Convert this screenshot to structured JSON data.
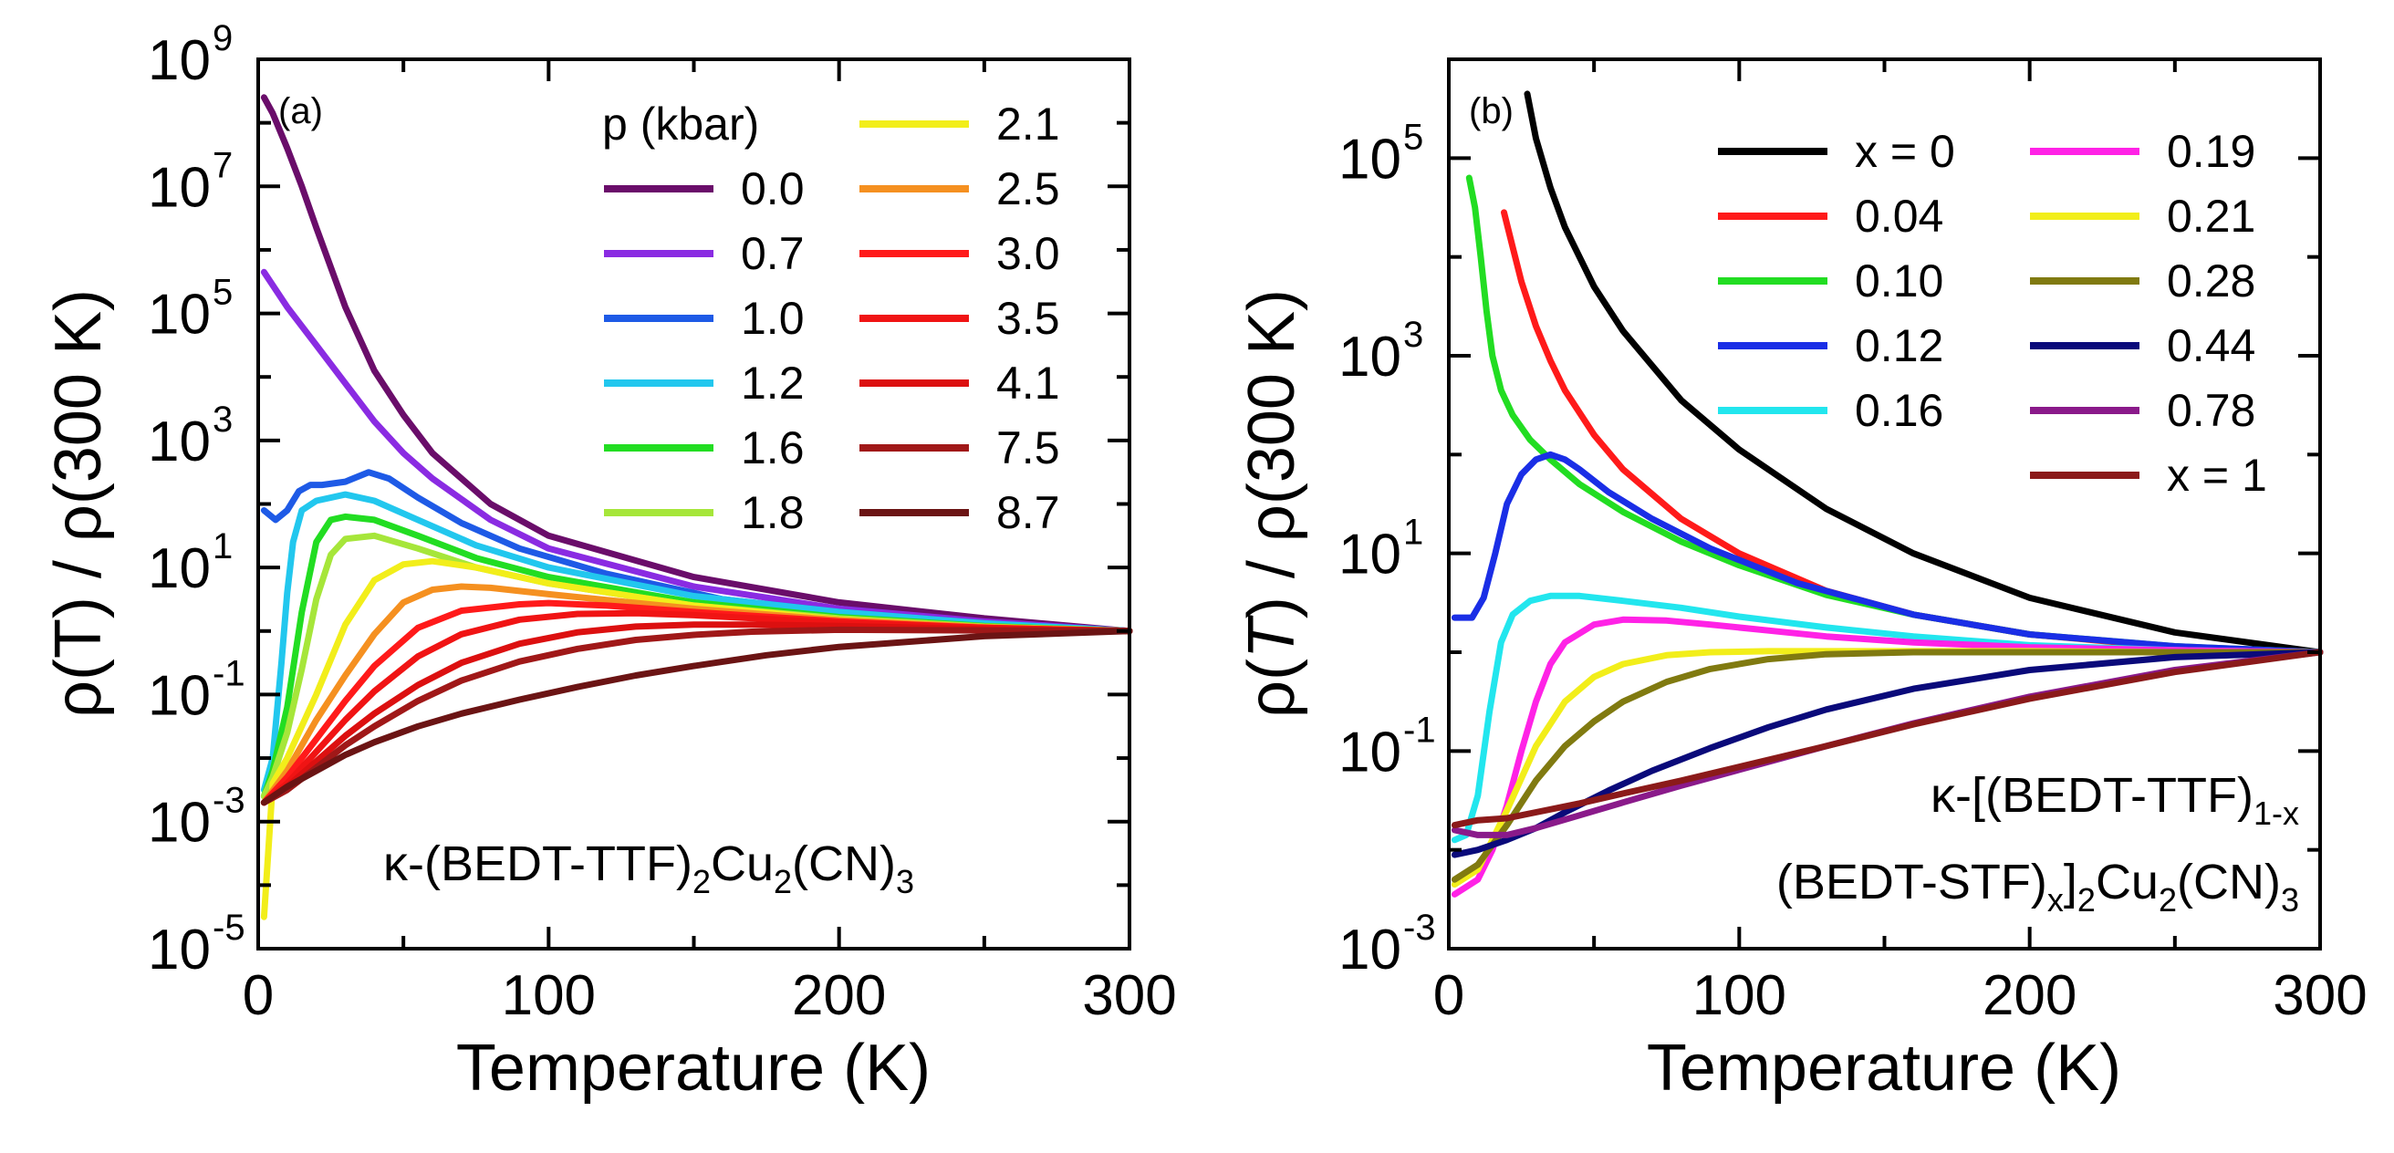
{
  "chart_data": [
    {
      "type": "line",
      "panel_label": "(a)",
      "xlabel": "Temperature (K)",
      "ylabel_parts": [
        "ρ(T) / ρ(300 K)"
      ],
      "yscale": "log",
      "xlim": [
        0,
        300
      ],
      "ylim_exp": [
        -5,
        9
      ],
      "x_ticks": [
        0,
        100,
        200,
        300
      ],
      "x_tick_labels": [
        "0",
        "100",
        "200",
        "300"
      ],
      "y_tick_exps": [
        -5,
        -3,
        -1,
        1,
        3,
        5,
        7,
        9
      ],
      "y_tick_base": "10",
      "y_tick_exp_labels": [
        "-5",
        "-3",
        "-1",
        "1",
        "3",
        "5",
        "7",
        "9"
      ],
      "legend_title": "p (kbar)",
      "formula": {
        "a": "κ-(BEDT-TTF)",
        "b": "2",
        "c": "Cu",
        "d": "2",
        "e": "(CN)",
        "f": "3"
      },
      "series": [
        {
          "name": "0.0",
          "color": "#6a0d6a",
          "x": [
            2,
            5,
            10,
            15,
            20,
            30,
            40,
            50,
            60,
            80,
            100,
            150,
            200,
            250,
            300
          ],
          "log10y": [
            8.4,
            8.15,
            7.6,
            7.0,
            6.35,
            5.1,
            4.1,
            3.4,
            2.8,
            2.0,
            1.5,
            0.85,
            0.45,
            0.2,
            0
          ]
        },
        {
          "name": "0.7",
          "color": "#8a2be2",
          "x": [
            2,
            10,
            20,
            30,
            40,
            50,
            60,
            80,
            100,
            150,
            200,
            250,
            300
          ],
          "log10y": [
            5.65,
            5.1,
            4.5,
            3.9,
            3.3,
            2.8,
            2.4,
            1.75,
            1.3,
            0.7,
            0.35,
            0.15,
            0
          ]
        },
        {
          "name": "1.0",
          "color": "#1e5ae6",
          "x": [
            2,
            6,
            10,
            14,
            18,
            22,
            30,
            38,
            45,
            55,
            70,
            90,
            120,
            160,
            200,
            250,
            300
          ],
          "log10y": [
            1.9,
            1.75,
            1.9,
            2.2,
            2.3,
            2.3,
            2.35,
            2.5,
            2.4,
            2.1,
            1.7,
            1.3,
            0.9,
            0.5,
            0.3,
            0.12,
            0
          ]
        },
        {
          "name": "1.2",
          "color": "#22c7ee",
          "x": [
            2,
            5,
            8,
            10,
            12,
            15,
            20,
            30,
            40,
            55,
            75,
            100,
            150,
            200,
            250,
            300
          ],
          "log10y": [
            -2.5,
            -2.0,
            -0.5,
            0.6,
            1.4,
            1.9,
            2.05,
            2.15,
            2.05,
            1.75,
            1.35,
            1.0,
            0.55,
            0.3,
            0.12,
            0
          ]
        },
        {
          "name": "1.6",
          "color": "#22dd22",
          "x": [
            2,
            5,
            10,
            15,
            20,
            25,
            30,
            40,
            55,
            75,
            100,
            150,
            200,
            250,
            300
          ],
          "log10y": [
            -2.6,
            -2.2,
            -1.2,
            0.3,
            1.4,
            1.75,
            1.8,
            1.75,
            1.5,
            1.15,
            0.85,
            0.45,
            0.22,
            0.08,
            0
          ]
        },
        {
          "name": "1.8",
          "color": "#a6e63a",
          "x": [
            2,
            5,
            10,
            15,
            20,
            25,
            30,
            40,
            55,
            75,
            100,
            150,
            200,
            250,
            300
          ],
          "log10y": [
            -2.6,
            -2.3,
            -1.6,
            -0.6,
            0.5,
            1.2,
            1.45,
            1.5,
            1.3,
            1.0,
            0.75,
            0.4,
            0.2,
            0.07,
            0
          ]
        },
        {
          "name": "2.1",
          "color": "#f2ee1a",
          "x": [
            2,
            5,
            10,
            20,
            30,
            40,
            50,
            60,
            75,
            100,
            150,
            200,
            250,
            300
          ],
          "log10y": [
            -4.5,
            -2.4,
            -2.0,
            -1.0,
            0.1,
            0.8,
            1.05,
            1.1,
            1.0,
            0.75,
            0.4,
            0.18,
            0.06,
            0
          ]
        },
        {
          "name": "2.5",
          "color": "#f59020",
          "x": [
            2,
            10,
            20,
            30,
            40,
            50,
            60,
            70,
            80,
            100,
            150,
            200,
            250,
            300
          ],
          "log10y": [
            -2.7,
            -2.2,
            -1.4,
            -0.7,
            -0.05,
            0.45,
            0.65,
            0.7,
            0.68,
            0.58,
            0.35,
            0.17,
            0.06,
            0
          ]
        },
        {
          "name": "3.0",
          "color": "#ff1a1a",
          "x": [
            2,
            10,
            20,
            30,
            40,
            55,
            70,
            90,
            100,
            120,
            150,
            200,
            250,
            300
          ],
          "log10y": [
            -2.7,
            -2.3,
            -1.7,
            -1.1,
            -0.55,
            0.05,
            0.32,
            0.42,
            0.44,
            0.4,
            0.3,
            0.15,
            0.05,
            0
          ]
        },
        {
          "name": "3.5",
          "color": "#f01414",
          "x": [
            2,
            10,
            20,
            30,
            40,
            55,
            70,
            90,
            110,
            130,
            150,
            200,
            250,
            300
          ],
          "log10y": [
            -2.7,
            -2.4,
            -1.9,
            -1.4,
            -0.95,
            -0.4,
            -0.05,
            0.18,
            0.27,
            0.28,
            0.25,
            0.13,
            0.05,
            0
          ]
        },
        {
          "name": "4.1",
          "color": "#dc1010",
          "x": [
            2,
            10,
            20,
            30,
            40,
            55,
            70,
            90,
            110,
            130,
            150,
            170,
            200,
            250,
            300
          ],
          "log10y": [
            -2.7,
            -2.45,
            -2.05,
            -1.65,
            -1.3,
            -0.85,
            -0.5,
            -0.2,
            -0.02,
            0.07,
            0.1,
            0.1,
            0.08,
            0.03,
            0
          ]
        },
        {
          "name": "7.5",
          "color": "#a01818",
          "x": [
            2,
            10,
            20,
            30,
            40,
            55,
            70,
            90,
            110,
            130,
            150,
            170,
            200,
            250,
            300
          ],
          "log10y": [
            -2.7,
            -2.5,
            -2.15,
            -1.8,
            -1.5,
            -1.1,
            -0.78,
            -0.48,
            -0.28,
            -0.14,
            -0.06,
            -0.01,
            0.02,
            0.01,
            0
          ]
        },
        {
          "name": "8.7",
          "color": "#6b1414",
          "x": [
            2,
            10,
            20,
            30,
            40,
            55,
            70,
            90,
            110,
            130,
            150,
            175,
            200,
            250,
            300
          ],
          "log10y": [
            -2.7,
            -2.45,
            -2.2,
            -1.95,
            -1.75,
            -1.5,
            -1.3,
            -1.08,
            -0.88,
            -0.7,
            -0.55,
            -0.38,
            -0.25,
            -0.08,
            0
          ]
        }
      ]
    },
    {
      "type": "line",
      "panel_label": "(b)",
      "xlabel": "Temperature (K)",
      "ylabel_parts": [
        "ρ(",
        "T",
        ") / ρ(300 K)"
      ],
      "yscale": "log",
      "xlim": [
        0,
        300
      ],
      "ylim_exp": [
        -3,
        6
      ],
      "x_ticks": [
        0,
        100,
        200,
        300
      ],
      "x_tick_labels": [
        "0",
        "100",
        "200",
        "300"
      ],
      "y_tick_exps": [
        -3,
        -1,
        1,
        3,
        5
      ],
      "y_tick_base": "10",
      "y_tick_exp_labels": [
        "-3",
        "-1",
        "1",
        "3",
        "5"
      ],
      "legend_title": "",
      "formula": {
        "line1a": "κ-[(BEDT-TTF)",
        "line1b": "1-x",
        "line2a": "(BEDT-STF)",
        "line2b": "x",
        "line2c": "]",
        "line2d": "2",
        "line2e": "Cu",
        "line2f": "2",
        "line2g": "(CN)",
        "line2h": "3"
      },
      "series": [
        {
          "name": "x = 0",
          "color": "#000000",
          "x": [
            27,
            30,
            35,
            40,
            50,
            60,
            80,
            100,
            130,
            160,
            200,
            250,
            300
          ],
          "log10y": [
            5.65,
            5.2,
            4.7,
            4.3,
            3.7,
            3.25,
            2.55,
            2.05,
            1.45,
            1.0,
            0.55,
            0.2,
            0
          ]
        },
        {
          "name": "0.04",
          "color": "#ff1a1a",
          "x": [
            19,
            22,
            25,
            30,
            35,
            40,
            50,
            60,
            80,
            100,
            130,
            160,
            200,
            250,
            300
          ],
          "log10y": [
            4.45,
            4.1,
            3.75,
            3.3,
            2.95,
            2.65,
            2.2,
            1.85,
            1.35,
            1.0,
            0.62,
            0.38,
            0.18,
            0.05,
            0
          ]
        },
        {
          "name": "0.10",
          "color": "#22dd22",
          "x": [
            7,
            9,
            11,
            13,
            15,
            18,
            22,
            28,
            35,
            45,
            60,
            80,
            100,
            130,
            160,
            200,
            250,
            300
          ],
          "log10y": [
            4.8,
            4.5,
            4.0,
            3.45,
            3.0,
            2.65,
            2.4,
            2.15,
            1.95,
            1.7,
            1.42,
            1.12,
            0.88,
            0.58,
            0.38,
            0.18,
            0.06,
            0
          ]
        },
        {
          "name": "0.12",
          "color": "#1a2ee6",
          "x": [
            2,
            8,
            12,
            16,
            20,
            25,
            30,
            35,
            40,
            45,
            55,
            70,
            90,
            120,
            160,
            200,
            250,
            300
          ],
          "log10y": [
            0.35,
            0.35,
            0.55,
            1.0,
            1.5,
            1.8,
            1.95,
            2.0,
            1.95,
            1.85,
            1.62,
            1.35,
            1.05,
            0.7,
            0.38,
            0.18,
            0.06,
            0
          ]
        },
        {
          "name": "0.16",
          "color": "#22e6ee",
          "x": [
            2,
            6,
            10,
            14,
            18,
            22,
            28,
            35,
            45,
            60,
            80,
            100,
            130,
            160,
            200,
            250,
            300
          ],
          "log10y": [
            -1.9,
            -1.85,
            -1.45,
            -0.6,
            0.1,
            0.38,
            0.52,
            0.57,
            0.57,
            0.52,
            0.45,
            0.36,
            0.25,
            0.16,
            0.07,
            0.02,
            0
          ]
        },
        {
          "name": "0.19",
          "color": "#ff22e6",
          "x": [
            2,
            10,
            15,
            20,
            25,
            30,
            35,
            40,
            50,
            60,
            75,
            90,
            110,
            130,
            160,
            200,
            250,
            300
          ],
          "log10y": [
            -2.45,
            -2.3,
            -2.0,
            -1.55,
            -1.0,
            -0.5,
            -0.12,
            0.1,
            0.28,
            0.33,
            0.32,
            0.28,
            0.22,
            0.16,
            0.1,
            0.05,
            0.02,
            0
          ]
        },
        {
          "name": "0.21",
          "color": "#f2ee1a",
          "x": [
            2,
            10,
            20,
            30,
            40,
            50,
            60,
            75,
            90,
            110,
            130,
            160,
            200,
            250,
            300
          ],
          "log10y": [
            -2.35,
            -2.2,
            -1.6,
            -0.95,
            -0.5,
            -0.25,
            -0.12,
            -0.03,
            0.0,
            0.01,
            0.01,
            0.01,
            0.01,
            0.0,
            0
          ]
        },
        {
          "name": "0.28",
          "color": "#807a10",
          "x": [
            2,
            10,
            20,
            30,
            40,
            50,
            60,
            75,
            90,
            110,
            130,
            160,
            200,
            250,
            300
          ],
          "log10y": [
            -2.3,
            -2.15,
            -1.75,
            -1.3,
            -0.95,
            -0.7,
            -0.5,
            -0.3,
            -0.17,
            -0.07,
            -0.02,
            0.0,
            0.0,
            0.0,
            0
          ]
        },
        {
          "name": "0.44",
          "color": "#0a0a7a",
          "x": [
            2,
            10,
            20,
            30,
            40,
            55,
            70,
            90,
            110,
            130,
            160,
            200,
            250,
            300
          ],
          "log10y": [
            -2.05,
            -2.0,
            -1.9,
            -1.78,
            -1.62,
            -1.4,
            -1.2,
            -0.97,
            -0.76,
            -0.58,
            -0.37,
            -0.18,
            -0.05,
            0
          ]
        },
        {
          "name": "0.78",
          "color": "#8a1a8a",
          "x": [
            2,
            10,
            20,
            30,
            45,
            60,
            80,
            100,
            130,
            160,
            200,
            250,
            300
          ],
          "log10y": [
            -1.8,
            -1.85,
            -1.85,
            -1.78,
            -1.65,
            -1.52,
            -1.35,
            -1.19,
            -0.95,
            -0.72,
            -0.45,
            -0.18,
            0
          ]
        },
        {
          "name": "x = 1",
          "color": "#8b1a1a",
          "x": [
            2,
            10,
            20,
            30,
            45,
            60,
            80,
            100,
            130,
            160,
            200,
            250,
            300
          ],
          "log10y": [
            -1.75,
            -1.7,
            -1.68,
            -1.62,
            -1.53,
            -1.43,
            -1.3,
            -1.16,
            -0.95,
            -0.73,
            -0.47,
            -0.2,
            0
          ]
        }
      ]
    }
  ]
}
